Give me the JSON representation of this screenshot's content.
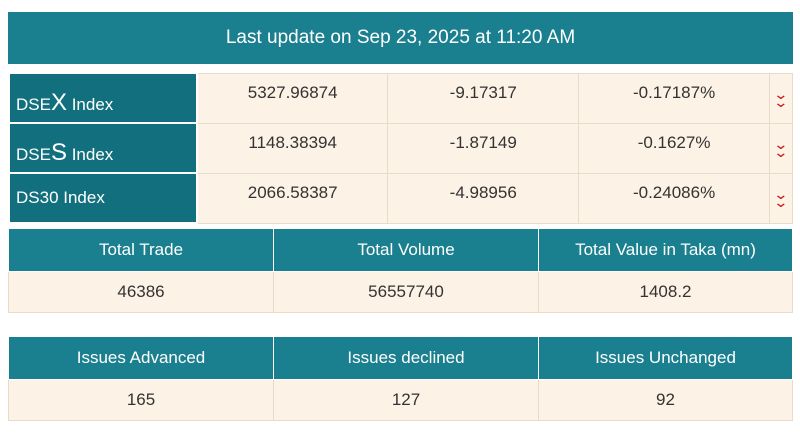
{
  "header": {
    "title": "Last update on Sep 23, 2025 at 11:20 AM"
  },
  "indices": [
    {
      "prefix": "DSE",
      "big": "X",
      "suffix": " Index",
      "value": "5327.96874",
      "change": "-9.17317",
      "percent": "-0.17187%",
      "direction": "down"
    },
    {
      "prefix": "DSE",
      "big": "S",
      "suffix": " Index",
      "value": "1148.38394",
      "change": "-1.87149",
      "percent": "-0.1627%",
      "direction": "down"
    },
    {
      "prefix": "DS30 Index",
      "big": "",
      "suffix": "",
      "value": "2066.58387",
      "change": "-4.98956",
      "percent": "-0.24086%",
      "direction": "down"
    }
  ],
  "trade_summary": {
    "headers": [
      "Total Trade",
      "Total Volume",
      "Total Value in Taka (mn)"
    ],
    "values": [
      "46386",
      "56557740",
      "1408.2"
    ]
  },
  "issues_summary": {
    "headers": [
      "Issues Advanced",
      "Issues declined",
      "Issues Unchanged"
    ],
    "values": [
      "165",
      "127",
      "92"
    ]
  },
  "colors": {
    "teal": "#1a7f8e",
    "dark_teal": "#12707e",
    "cell_bg": "#fdf2e6",
    "down_arrow": "#cc1111"
  },
  "icons": {
    "down": "double-chevron-down-icon"
  }
}
